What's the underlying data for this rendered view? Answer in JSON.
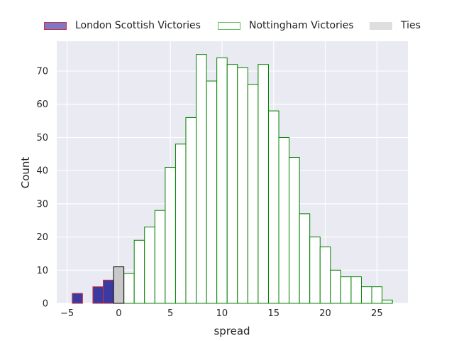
{
  "chart_data": {
    "type": "bar",
    "xlabel": "spread",
    "ylabel": "Count",
    "xlim": [
      -6,
      28
    ],
    "ylim": [
      0,
      79
    ],
    "x_ticks": [
      -5,
      0,
      5,
      10,
      15,
      20,
      25
    ],
    "y_ticks": [
      0,
      10,
      20,
      30,
      40,
      50,
      60,
      70
    ],
    "grid": true,
    "bin_width": 1,
    "legend_position": "top",
    "series": [
      {
        "name": "London Scottish Victories",
        "color": "#3a3aa0",
        "edge_color": "#d02c3c",
        "x": [
          -4,
          -2,
          -1
        ],
        "values": [
          3,
          5,
          7
        ]
      },
      {
        "name": "Nottingham Victories",
        "color": "#ffffff",
        "edge_color": "#008000",
        "x": [
          1,
          2,
          3,
          4,
          5,
          6,
          7,
          8,
          9,
          10,
          11,
          12,
          13,
          14,
          15,
          16,
          17,
          18,
          19,
          20,
          21,
          22,
          23,
          24,
          25,
          26
        ],
        "values": [
          9,
          19,
          23,
          28,
          41,
          48,
          56,
          75,
          67,
          74,
          72,
          71,
          66,
          72,
          58,
          50,
          44,
          27,
          20,
          17,
          10,
          8,
          8,
          5,
          5,
          1
        ]
      },
      {
        "name": "Ties",
        "color": "#c8c8c8",
        "edge_color": "#000000",
        "x": [
          0
        ],
        "values": [
          11
        ]
      }
    ]
  }
}
